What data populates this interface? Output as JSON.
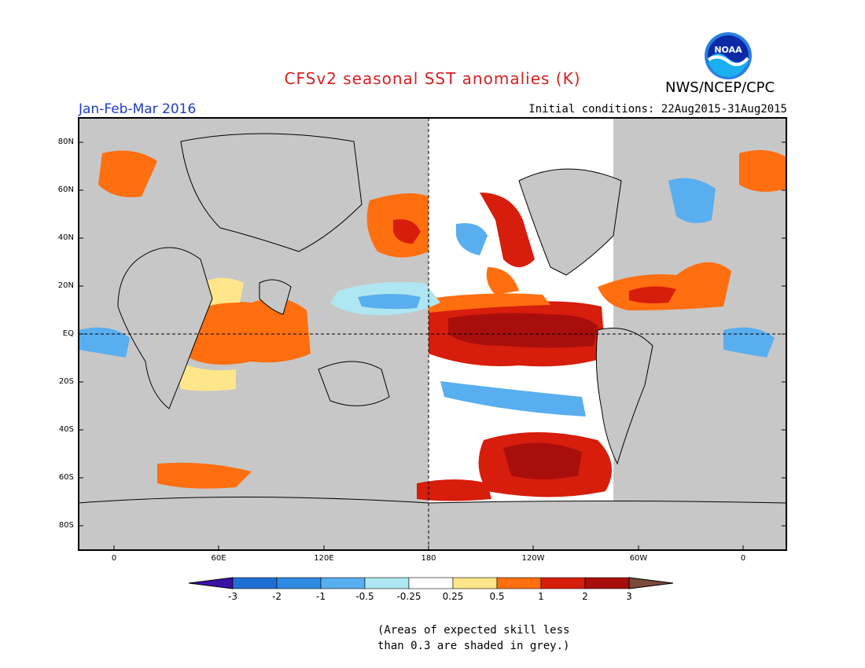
{
  "header": {
    "title": "CFSv2 seasonal SST anomalies (K)",
    "agency": "NWS/NCEP/CPC",
    "logo_text": "NOAA",
    "period": "Jan-Feb-Mar 2016",
    "initial_conditions": "Initial conditions: 22Aug2015-31Aug2015"
  },
  "axes": {
    "lat_labels": [
      "80N",
      "60N",
      "40N",
      "20N",
      "EQ",
      "20S",
      "40S",
      "60S",
      "80S"
    ],
    "lon_labels": [
      "0",
      "60E",
      "120E",
      "180",
      "120W",
      "60W",
      "0"
    ]
  },
  "colorbar": {
    "labels": [
      "-3",
      "-2",
      "-1",
      "-0.5",
      "-0.25",
      "0.25",
      "0.5",
      "1",
      "2",
      "3"
    ],
    "colors": [
      "#3c11a8",
      "#1f6fd3",
      "#2f8ae3",
      "#58aeef",
      "#aee6f2",
      "#ffffff",
      "#ffe68a",
      "#ff6e0f",
      "#d71d0c",
      "#a80e0b",
      "#7a4a3a"
    ]
  },
  "map_colors": {
    "land": "#c7c7c7",
    "neutral_ocean": "#ffffff",
    "missing_skill": "#c7c7c7"
  },
  "note": {
    "line1": "(Areas of expected skill less",
    "line2": "than 0.3 are shaded in grey.)"
  }
}
